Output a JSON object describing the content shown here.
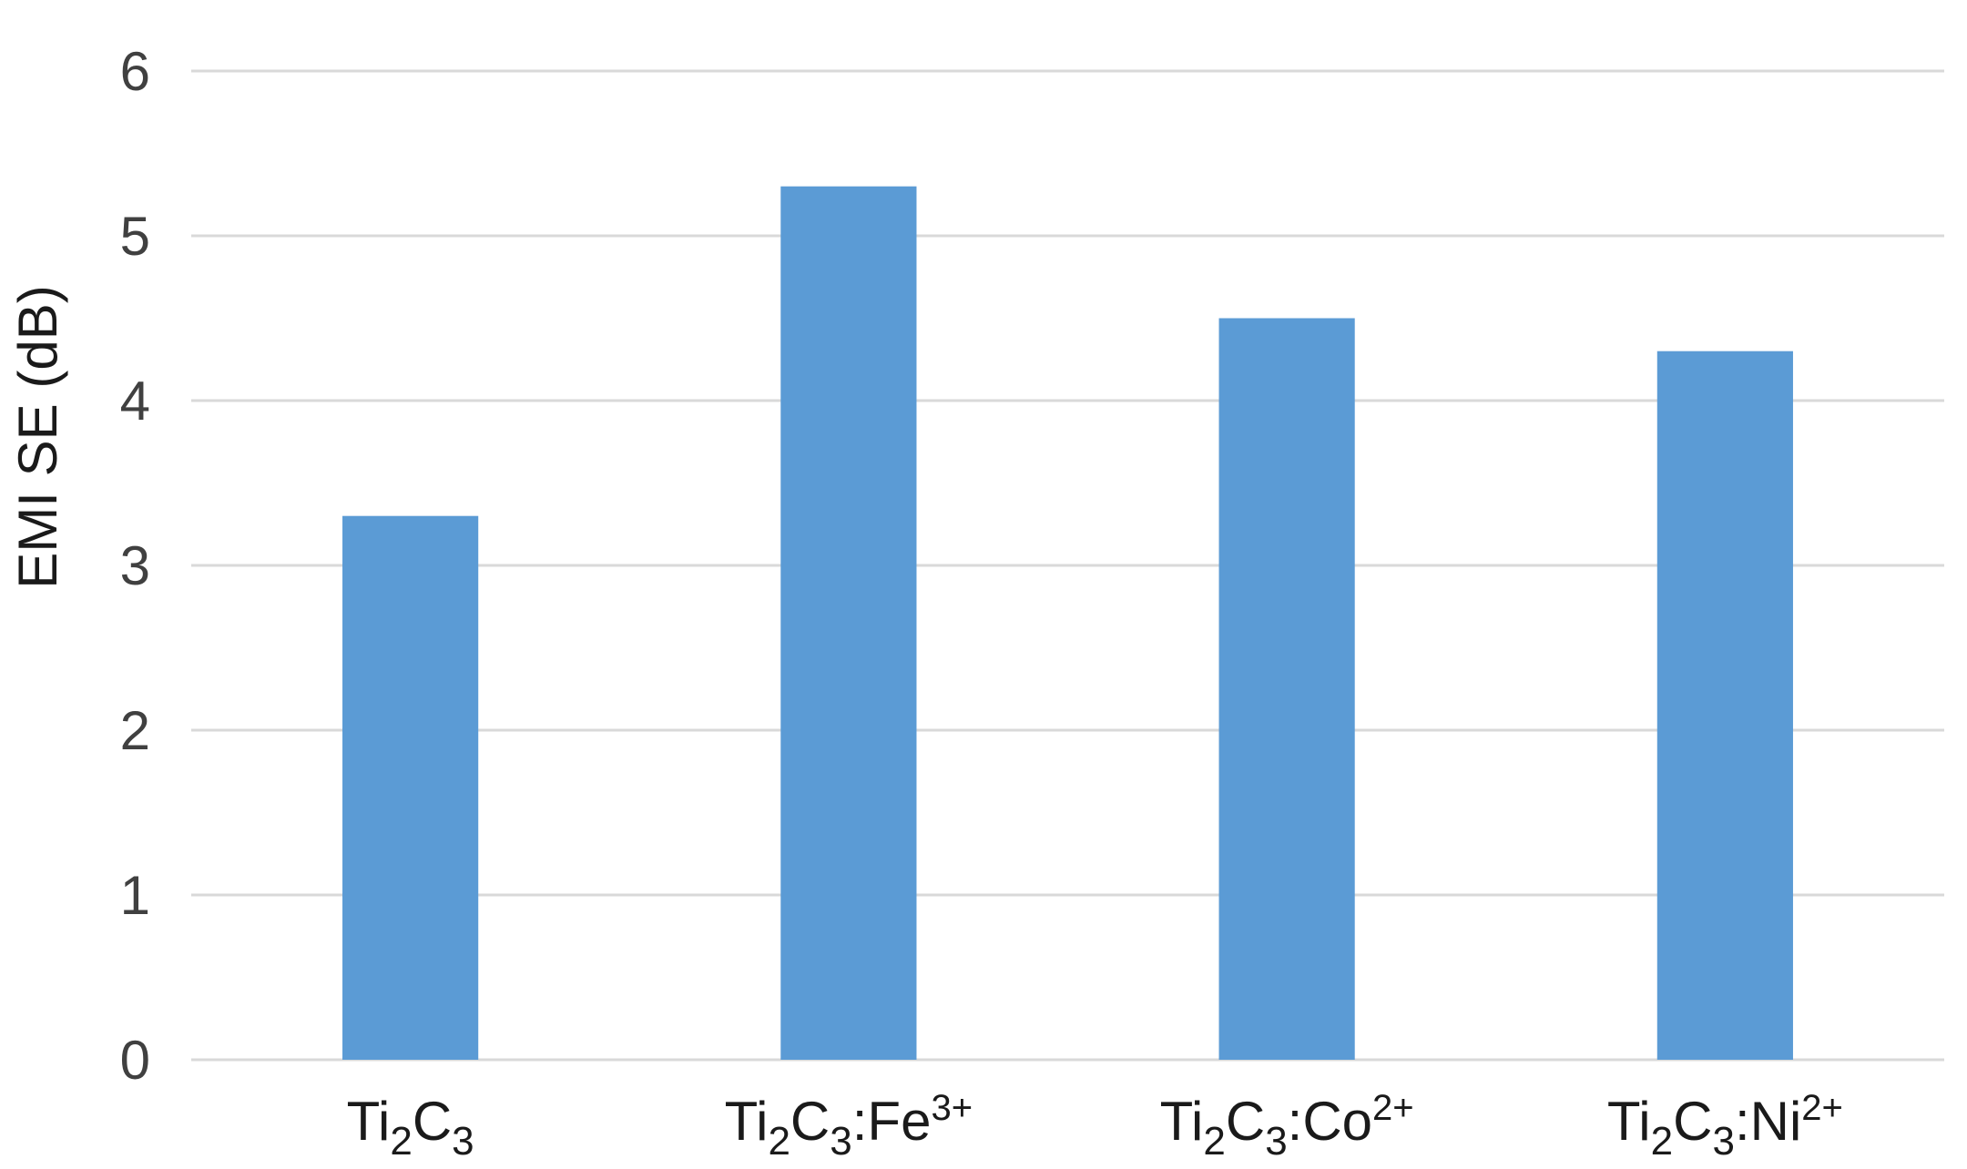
{
  "chart_data": {
    "type": "bar",
    "categories": [
      {
        "base": "Ti",
        "sub1": "2",
        "mid": "C",
        "sub2": "3",
        "tail": "",
        "sup": ""
      },
      {
        "base": "Ti",
        "sub1": "2",
        "mid": "C",
        "sub2": "3",
        "tail": ":Fe",
        "sup": "3+"
      },
      {
        "base": "Ti",
        "sub1": "2",
        "mid": "C",
        "sub2": "3",
        "tail": ":Co",
        "sup": "2+"
      },
      {
        "base": "Ti",
        "sub1": "2",
        "mid": "C",
        "sub2": "3",
        "tail": ":Ni",
        "sup": "2+"
      }
    ],
    "values": [
      3.3,
      5.3,
      4.5,
      4.3
    ],
    "ylabel": "EMI SE (dB)",
    "xlabel": "",
    "ylim": [
      0,
      6
    ],
    "yticks": [
      0,
      1,
      2,
      3,
      4,
      5,
      6
    ],
    "grid": true,
    "bar_color": "#5b9bd5",
    "grid_color": "#d9d9d9"
  }
}
